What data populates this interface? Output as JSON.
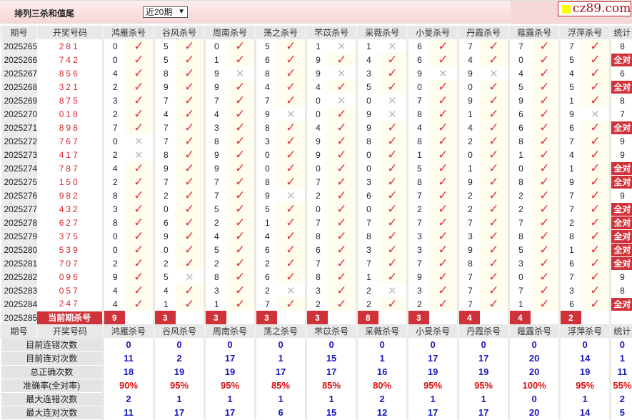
{
  "header": {
    "title": "排列三杀和值尾",
    "range_select": "近20期",
    "logo_text": "cz89.com"
  },
  "colors": {
    "accent": "#d0323a",
    "check": "#e2343e",
    "cross": "#bbbbbb",
    "stat_blue": "#1818c0",
    "stat_red": "#e01010"
  },
  "columns": {
    "period": "期号",
    "code": "开奖号码",
    "experts": [
      "鸿雁杀号",
      "谷风杀号",
      "周南杀号",
      "荡之杀号",
      "芣苡杀号",
      "采薇杀号",
      "小旻杀号",
      "丹霞杀号",
      "薤露杀号",
      "浮萍杀号"
    ],
    "stat": "统计"
  },
  "rows": [
    {
      "period": "2025265",
      "code": "281",
      "kills": [
        "0",
        "5",
        "0",
        "5",
        "1",
        "1",
        "6",
        "7",
        "7",
        "7"
      ],
      "marks": [
        1,
        1,
        1,
        1,
        0,
        0,
        1,
        1,
        1,
        1
      ],
      "stat": "8"
    },
    {
      "period": "2025266",
      "code": "742",
      "kills": [
        "0",
        "5",
        "1",
        "6",
        "9",
        "4",
        "6",
        "4",
        "0",
        "5"
      ],
      "marks": [
        1,
        1,
        1,
        1,
        1,
        1,
        1,
        1,
        1,
        1
      ],
      "stat": "全对"
    },
    {
      "period": "2025267",
      "code": "856",
      "kills": [
        "4",
        "8",
        "9",
        "8",
        "9",
        "3",
        "9",
        "9",
        "4",
        "4"
      ],
      "marks": [
        1,
        1,
        0,
        1,
        0,
        1,
        0,
        0,
        1,
        1
      ],
      "stat": "6"
    },
    {
      "period": "2025268",
      "code": "321",
      "kills": [
        "2",
        "9",
        "9",
        "4",
        "4",
        "5",
        "0",
        "0",
        "5",
        "5"
      ],
      "marks": [
        1,
        1,
        1,
        1,
        1,
        1,
        1,
        1,
        1,
        1
      ],
      "stat": "全对"
    },
    {
      "period": "2025269",
      "code": "875",
      "kills": [
        "3",
        "7",
        "7",
        "7",
        "0",
        "0",
        "7",
        "9",
        "9",
        "1"
      ],
      "marks": [
        1,
        1,
        1,
        1,
        0,
        0,
        1,
        1,
        1,
        1
      ],
      "stat": "8"
    },
    {
      "period": "2025270",
      "code": "018",
      "kills": [
        "2",
        "4",
        "4",
        "9",
        "0",
        "9",
        "8",
        "1",
        "6",
        "9"
      ],
      "marks": [
        1,
        1,
        1,
        0,
        1,
        0,
        1,
        1,
        1,
        0
      ],
      "stat": "7"
    },
    {
      "period": "2025271",
      "code": "898",
      "kills": [
        "7",
        "7",
        "3",
        "8",
        "4",
        "9",
        "4",
        "4",
        "6",
        "6"
      ],
      "marks": [
        1,
        1,
        1,
        1,
        1,
        1,
        1,
        1,
        1,
        1
      ],
      "stat": "全对"
    },
    {
      "period": "2025272",
      "code": "767",
      "kills": [
        "0",
        "7",
        "8",
        "3",
        "9",
        "8",
        "8",
        "2",
        "8",
        "7"
      ],
      "marks": [
        0,
        1,
        1,
        1,
        1,
        1,
        1,
        1,
        1,
        1
      ],
      "stat": "9"
    },
    {
      "period": "2025273",
      "code": "417",
      "kills": [
        "2",
        "8",
        "9",
        "0",
        "9",
        "0",
        "1",
        "0",
        "1",
        "4"
      ],
      "marks": [
        0,
        1,
        1,
        1,
        1,
        1,
        1,
        1,
        1,
        1
      ],
      "stat": "9"
    },
    {
      "period": "2025274",
      "code": "787",
      "kills": [
        "4",
        "9",
        "9",
        "0",
        "0",
        "0",
        "5",
        "1",
        "0",
        "1"
      ],
      "marks": [
        1,
        1,
        1,
        1,
        1,
        1,
        1,
        1,
        1,
        1
      ],
      "stat": "全对"
    },
    {
      "period": "2025275",
      "code": "150",
      "kills": [
        "2",
        "7",
        "7",
        "8",
        "7",
        "3",
        "8",
        "9",
        "8",
        "9"
      ],
      "marks": [
        1,
        1,
        1,
        1,
        1,
        1,
        1,
        1,
        1,
        1
      ],
      "stat": "全对"
    },
    {
      "period": "2025276",
      "code": "982",
      "kills": [
        "8",
        "2",
        "7",
        "9",
        "2",
        "6",
        "7",
        "2",
        "2",
        "7"
      ],
      "marks": [
        1,
        1,
        1,
        0,
        1,
        1,
        1,
        1,
        1,
        1
      ],
      "stat": "9"
    },
    {
      "period": "2025277",
      "code": "432",
      "kills": [
        "3",
        "0",
        "5",
        "5",
        "0",
        "0",
        "2",
        "2",
        "2",
        "7"
      ],
      "marks": [
        1,
        1,
        1,
        1,
        1,
        1,
        1,
        1,
        1,
        1
      ],
      "stat": "全对"
    },
    {
      "period": "2025278",
      "code": "627",
      "kills": [
        "8",
        "6",
        "2",
        "1",
        "7",
        "7",
        "7",
        "7",
        "7",
        "2"
      ],
      "marks": [
        1,
        1,
        1,
        1,
        1,
        1,
        1,
        1,
        1,
        1
      ],
      "stat": "全对"
    },
    {
      "period": "2025279",
      "code": "375",
      "kills": [
        "0",
        "9",
        "4",
        "4",
        "8",
        "8",
        "3",
        "3",
        "8",
        "8"
      ],
      "marks": [
        1,
        1,
        1,
        1,
        1,
        1,
        1,
        1,
        1,
        1
      ],
      "stat": "全对"
    },
    {
      "period": "2025280",
      "code": "539",
      "kills": [
        "0",
        "0",
        "5",
        "6",
        "6",
        "3",
        "3",
        "9",
        "5",
        "1"
      ],
      "marks": [
        1,
        1,
        1,
        1,
        1,
        1,
        1,
        1,
        1,
        1
      ],
      "stat": "全对"
    },
    {
      "period": "2025281",
      "code": "707",
      "kills": [
        "2",
        "2",
        "2",
        "2",
        "7",
        "7",
        "7",
        "8",
        "3",
        "6"
      ],
      "marks": [
        1,
        1,
        1,
        1,
        1,
        1,
        1,
        1,
        1,
        1
      ],
      "stat": "全对"
    },
    {
      "period": "2025282",
      "code": "096",
      "kills": [
        "9",
        "5",
        "8",
        "6",
        "8",
        "1",
        "9",
        "7",
        "0",
        "7"
      ],
      "marks": [
        1,
        0,
        1,
        1,
        1,
        1,
        1,
        1,
        1,
        1
      ],
      "stat": "9"
    },
    {
      "period": "2025283",
      "code": "057",
      "kills": [
        "4",
        "4",
        "3",
        "2",
        "3",
        "2",
        "3",
        "7",
        "7",
        "3"
      ],
      "marks": [
        1,
        1,
        1,
        0,
        1,
        0,
        1,
        1,
        1,
        1
      ],
      "stat": "8"
    },
    {
      "period": "2025284",
      "code": "247",
      "kills": [
        "4",
        "1",
        "1",
        "7",
        "2",
        "2",
        "2",
        "7",
        "1",
        "6"
      ],
      "marks": [
        1,
        1,
        1,
        1,
        1,
        1,
        1,
        1,
        1,
        1
      ],
      "stat": "全对"
    }
  ],
  "current": {
    "period": "2025285",
    "label": "当前期杀号",
    "kills": [
      "9",
      "3",
      "3",
      "3",
      "3",
      "8",
      "3",
      "4",
      "4",
      "2"
    ]
  },
  "stats": [
    {
      "label": "目前连错次数",
      "values": [
        "0",
        "0",
        "0",
        "0",
        "0",
        "0",
        "0",
        "0",
        "0",
        "0",
        "0"
      ]
    },
    {
      "label": "目前连对次数",
      "values": [
        "11",
        "2",
        "17",
        "1",
        "15",
        "1",
        "17",
        "17",
        "20",
        "14",
        "1"
      ]
    },
    {
      "label": "总正确次数",
      "values": [
        "18",
        "19",
        "19",
        "17",
        "17",
        "16",
        "19",
        "19",
        "20",
        "19",
        "11"
      ]
    },
    {
      "label": "准确率(全对率)",
      "values": [
        "90%",
        "95%",
        "95%",
        "85%",
        "85%",
        "80%",
        "95%",
        "95%",
        "100%",
        "95%",
        "55%"
      ],
      "pct": true
    },
    {
      "label": "最大连错次数",
      "values": [
        "2",
        "1",
        "1",
        "1",
        "1",
        "2",
        "1",
        "1",
        "0",
        "1",
        "2"
      ]
    },
    {
      "label": "最大连对次数",
      "values": [
        "11",
        "17",
        "17",
        "6",
        "15",
        "12",
        "17",
        "17",
        "20",
        "14",
        "5"
      ]
    }
  ]
}
